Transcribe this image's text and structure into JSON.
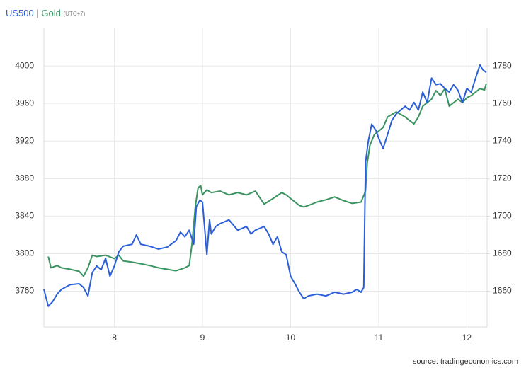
{
  "chart_data": {
    "type": "line",
    "title_separator": "|",
    "timezone": "(UTC+7)",
    "source": "source: tradingeconomics.com",
    "xlim": [
      7.2,
      12.23
    ],
    "xticks": [
      8,
      9,
      10,
      11,
      12
    ],
    "ylim": [
      3722,
      4040
    ],
    "yticks": [
      3760,
      3800,
      3840,
      3880,
      3920,
      3960,
      4000
    ],
    "y2lim": [
      1641,
      1800
    ],
    "y2ticks": [
      1660,
      1680,
      1700,
      1720,
      1740,
      1760,
      1780
    ],
    "grid": true,
    "series": [
      {
        "name": "US500",
        "color": "#2b5fd9",
        "axis": "y",
        "x": [
          7.2,
          7.25,
          7.3,
          7.35,
          7.4,
          7.5,
          7.6,
          7.65,
          7.7,
          7.75,
          7.8,
          7.85,
          7.9,
          7.95,
          8.0,
          8.05,
          8.1,
          8.2,
          8.25,
          8.3,
          8.4,
          8.5,
          8.6,
          8.7,
          8.75,
          8.8,
          8.85,
          8.9,
          8.93,
          8.97,
          9.0,
          9.05,
          9.08,
          9.1,
          9.15,
          9.2,
          9.3,
          9.4,
          9.5,
          9.55,
          9.6,
          9.7,
          9.75,
          9.8,
          9.85,
          9.9,
          9.95,
          10.0,
          10.05,
          10.1,
          10.15,
          10.2,
          10.3,
          10.4,
          10.5,
          10.6,
          10.7,
          10.75,
          10.8,
          10.83,
          10.85,
          10.88,
          10.92,
          10.97,
          11.0,
          11.05,
          11.1,
          11.15,
          11.2,
          11.3,
          11.35,
          11.4,
          11.45,
          11.5,
          11.55,
          11.6,
          11.65,
          11.7,
          11.75,
          11.8,
          11.85,
          11.9,
          11.95,
          12.0,
          12.05,
          12.1,
          12.15,
          12.18,
          12.22
        ],
        "values": [
          3762,
          3744,
          3749,
          3757,
          3762,
          3767,
          3768,
          3764,
          3755,
          3780,
          3787,
          3783,
          3795,
          3776,
          3787,
          3802,
          3808,
          3810,
          3820,
          3810,
          3808,
          3805,
          3807,
          3814,
          3823,
          3818,
          3825,
          3810,
          3850,
          3857,
          3855,
          3799,
          3836,
          3821,
          3829,
          3832,
          3836,
          3825,
          3829,
          3821,
          3825,
          3829,
          3821,
          3810,
          3818,
          3802,
          3799,
          3776,
          3768,
          3759,
          3752,
          3755,
          3757,
          3755,
          3759,
          3757,
          3759,
          3762,
          3759,
          3764,
          3897,
          3919,
          3938,
          3931,
          3923,
          3912,
          3927,
          3942,
          3949,
          3957,
          3953,
          3961,
          3953,
          3972,
          3961,
          3987,
          3980,
          3981,
          3976,
          3972,
          3980,
          3974,
          3961,
          3976,
          3972,
          3987,
          4001,
          3996,
          3993
        ]
      },
      {
        "name": "Gold",
        "color": "#3a9461",
        "axis": "y2",
        "x": [
          7.25,
          7.28,
          7.35,
          7.4,
          7.5,
          7.6,
          7.65,
          7.7,
          7.75,
          7.8,
          7.9,
          8.0,
          8.05,
          8.1,
          8.2,
          8.3,
          8.4,
          8.5,
          8.6,
          8.7,
          8.8,
          8.85,
          8.88,
          8.92,
          8.95,
          8.98,
          9.0,
          9.05,
          9.1,
          9.2,
          9.3,
          9.4,
          9.5,
          9.6,
          9.7,
          9.8,
          9.9,
          9.95,
          10.0,
          10.1,
          10.15,
          10.2,
          10.3,
          10.4,
          10.5,
          10.6,
          10.7,
          10.8,
          10.85,
          10.87,
          10.9,
          10.95,
          11.0,
          11.05,
          11.1,
          11.2,
          11.3,
          11.35,
          11.4,
          11.45,
          11.5,
          11.55,
          11.6,
          11.65,
          11.7,
          11.75,
          11.8,
          11.85,
          11.9,
          11.95,
          12.0,
          12.05,
          12.1,
          12.15,
          12.2,
          12.22
        ],
        "values": [
          1678.5,
          1672.5,
          1673.7,
          1672.5,
          1671.7,
          1670.6,
          1668,
          1672.5,
          1679.2,
          1678.5,
          1679.2,
          1677.4,
          1679.2,
          1676.2,
          1675.5,
          1674.7,
          1673.7,
          1672.5,
          1671.7,
          1670.9,
          1672.5,
          1673.7,
          1684.9,
          1705.7,
          1715.1,
          1716.2,
          1711.3,
          1714,
          1712.5,
          1713.3,
          1711.3,
          1712.5,
          1711.3,
          1713.3,
          1706.4,
          1709.4,
          1712.5,
          1711.3,
          1709.4,
          1705.7,
          1704.9,
          1705.7,
          1707.5,
          1708.7,
          1710.2,
          1708.3,
          1706.8,
          1707.5,
          1713.3,
          1728.3,
          1737.7,
          1743.4,
          1745.3,
          1747.2,
          1752.8,
          1755.5,
          1752.8,
          1750.9,
          1749.1,
          1752.8,
          1758.5,
          1760.4,
          1762.3,
          1766.8,
          1764.2,
          1767.9,
          1758.5,
          1760.4,
          1762.3,
          1760.4,
          1763,
          1764.2,
          1766,
          1767.9,
          1767.2,
          1770.6
        ]
      }
    ]
  }
}
